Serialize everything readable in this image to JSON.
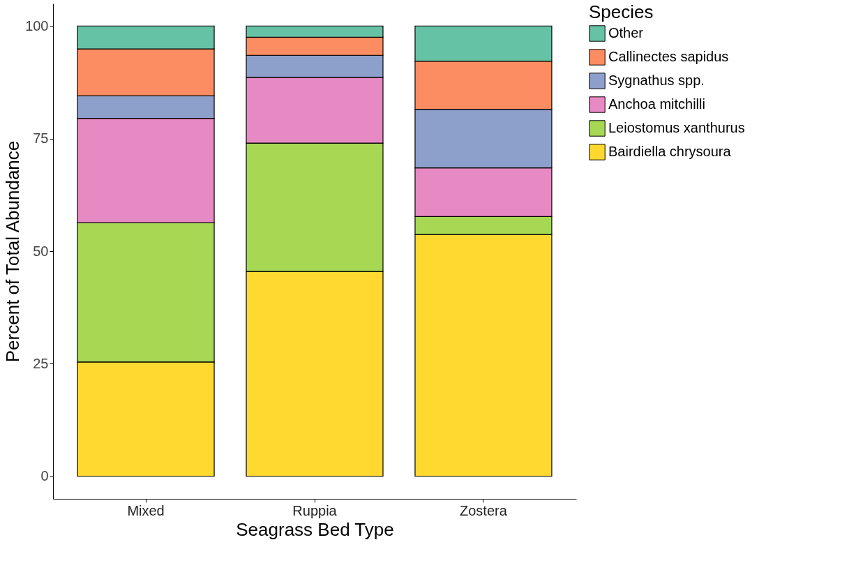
{
  "chart_data": {
    "type": "bar",
    "stacked": true,
    "xlabel": "Seagrass Bed Type",
    "ylabel": "Percent of Total Abundance",
    "legend_title": "Species",
    "legend": "right",
    "categories": [
      "Mixed",
      "Ruppia",
      "Zostera"
    ],
    "series": [
      {
        "name": "Bairdiella chrysoura",
        "color": "#ffd92f",
        "values": [
          25.4,
          45.5,
          53.7
        ]
      },
      {
        "name": "Leiostomus xanthurus",
        "color": "#a6d854",
        "values": [
          30.9,
          28.5,
          4.0
        ]
      },
      {
        "name": "Anchoa mitchilli",
        "color": "#e78ac3",
        "values": [
          23.2,
          14.6,
          10.8
        ]
      },
      {
        "name": "Sygnathus spp.",
        "color": "#8da0cb",
        "values": [
          5.0,
          4.9,
          13.0
        ]
      },
      {
        "name": "Callinectes sapidus",
        "color": "#fc8d62",
        "values": [
          10.4,
          4.0,
          10.7
        ]
      },
      {
        "name": "Other",
        "color": "#66c2a5",
        "values": [
          5.1,
          2.5,
          7.8
        ]
      }
    ],
    "ylim": [
      -5,
      105
    ],
    "yticks": [
      0,
      25,
      50,
      75,
      100
    ]
  }
}
